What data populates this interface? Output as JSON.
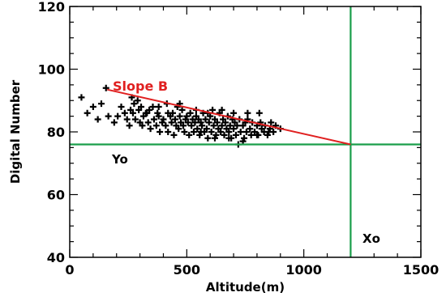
{
  "chart_data": {
    "type": "scatter",
    "title": "",
    "xlabel": "Altitude(m)",
    "ylabel": "Digital Number",
    "xlim": [
      0,
      1500
    ],
    "ylim": [
      40,
      120
    ],
    "xticks": [
      0,
      500,
      1000,
      1500
    ],
    "yticks": [
      40,
      60,
      80,
      100,
      120
    ],
    "x_minor_step": 100,
    "y_minor_step": 5,
    "colors": {
      "points": "#000000",
      "slope_line": "#e02020",
      "reference_lines": "#1a9e4a"
    },
    "points": [
      [
        50,
        91
      ],
      [
        75,
        86
      ],
      [
        100,
        88
      ],
      [
        120,
        84
      ],
      [
        135,
        89
      ],
      [
        155,
        94
      ],
      [
        165,
        85
      ],
      [
        190,
        83
      ],
      [
        205,
        85
      ],
      [
        220,
        88
      ],
      [
        235,
        86
      ],
      [
        245,
        84
      ],
      [
        255,
        82
      ],
      [
        260,
        87
      ],
      [
        265,
        91
      ],
      [
        270,
        86
      ],
      [
        275,
        89
      ],
      [
        280,
        84
      ],
      [
        290,
        90
      ],
      [
        295,
        87
      ],
      [
        300,
        83
      ],
      [
        305,
        88
      ],
      [
        310,
        82
      ],
      [
        315,
        85
      ],
      [
        325,
        86
      ],
      [
        335,
        83
      ],
      [
        340,
        87
      ],
      [
        345,
        81
      ],
      [
        355,
        88
      ],
      [
        360,
        84
      ],
      [
        370,
        82
      ],
      [
        375,
        86
      ],
      [
        380,
        85
      ],
      [
        385,
        80
      ],
      [
        395,
        83
      ],
      [
        400,
        84
      ],
      [
        410,
        82
      ],
      [
        415,
        89
      ],
      [
        420,
        80
      ],
      [
        430,
        85
      ],
      [
        435,
        83
      ],
      [
        440,
        86
      ],
      [
        445,
        79
      ],
      [
        450,
        84
      ],
      [
        455,
        82
      ],
      [
        460,
        88
      ],
      [
        465,
        81
      ],
      [
        470,
        85
      ],
      [
        475,
        83
      ],
      [
        480,
        87
      ],
      [
        485,
        82
      ],
      [
        490,
        80
      ],
      [
        495,
        84
      ],
      [
        500,
        85
      ],
      [
        505,
        83
      ],
      [
        510,
        79
      ],
      [
        515,
        86
      ],
      [
        520,
        82
      ],
      [
        525,
        84
      ],
      [
        530,
        80
      ],
      [
        535,
        83
      ],
      [
        540,
        85
      ],
      [
        545,
        81
      ],
      [
        550,
        84
      ],
      [
        555,
        79
      ],
      [
        560,
        83
      ],
      [
        565,
        82
      ],
      [
        570,
        86
      ],
      [
        575,
        80
      ],
      [
        580,
        84
      ],
      [
        585,
        81
      ],
      [
        590,
        78
      ],
      [
        595,
        83
      ],
      [
        600,
        85
      ],
      [
        605,
        80
      ],
      [
        610,
        87
      ],
      [
        615,
        82
      ],
      [
        620,
        84
      ],
      [
        625,
        79
      ],
      [
        630,
        83
      ],
      [
        635,
        81
      ],
      [
        640,
        86
      ],
      [
        645,
        80
      ],
      [
        650,
        82
      ],
      [
        655,
        84
      ],
      [
        660,
        79
      ],
      [
        665,
        83
      ],
      [
        670,
        81
      ],
      [
        675,
        85
      ],
      [
        680,
        80
      ],
      [
        685,
        82
      ],
      [
        690,
        78
      ],
      [
        695,
        84
      ],
      [
        700,
        81
      ],
      [
        705,
        83
      ],
      [
        710,
        79
      ],
      [
        715,
        82
      ],
      [
        720,
        76
      ],
      [
        725,
        84
      ],
      [
        730,
        80
      ],
      [
        740,
        82
      ],
      [
        745,
        78
      ],
      [
        750,
        83
      ],
      [
        755,
        80
      ],
      [
        760,
        84
      ],
      [
        770,
        81
      ],
      [
        775,
        79
      ],
      [
        780,
        83
      ],
      [
        790,
        80
      ],
      [
        800,
        82
      ],
      [
        805,
        79
      ],
      [
        815,
        83
      ],
      [
        820,
        81
      ],
      [
        830,
        80
      ],
      [
        835,
        82
      ],
      [
        845,
        79
      ],
      [
        855,
        81
      ],
      [
        860,
        83
      ],
      [
        870,
        80
      ],
      [
        880,
        82
      ],
      [
        900,
        81
      ],
      [
        810,
        86
      ],
      [
        760,
        86
      ],
      [
        700,
        86
      ],
      [
        650,
        87
      ],
      [
        590,
        86
      ],
      [
        540,
        87
      ],
      [
        470,
        89
      ],
      [
        420,
        86
      ],
      [
        380,
        88
      ],
      [
        330,
        86
      ],
      [
        560,
        80
      ],
      [
        620,
        78
      ],
      [
        680,
        78
      ],
      [
        740,
        77
      ],
      [
        800,
        79
      ],
      [
        850,
        80
      ]
    ],
    "slope_line": {
      "x": [
        160,
        1200
      ],
      "y": [
        93.5,
        76
      ]
    },
    "x0_line": 1200,
    "y0_line": 76,
    "annotations": {
      "slope": "Slope B",
      "y0": "Yo",
      "x0": "Xo"
    }
  }
}
